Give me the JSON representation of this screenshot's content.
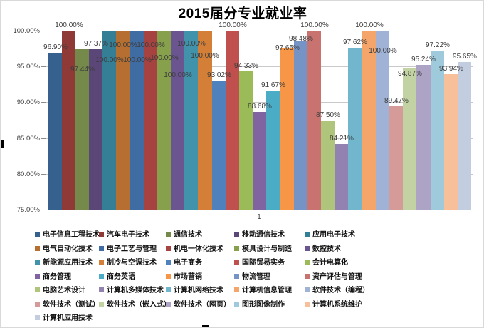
{
  "chart": {
    "title": "2015届分专业就业率",
    "x_category": "1"
  },
  "chart_data": {
    "type": "bar",
    "title": "2015届分专业就业率",
    "categories": [
      "1"
    ],
    "xlabel": "",
    "ylabel": "",
    "ylim": [
      75,
      100
    ],
    "y_tick_values": [
      100,
      95,
      90,
      85,
      80,
      75
    ],
    "y_tick_labels": [
      "100.00%",
      "95.00%",
      "90.00%",
      "85.00%",
      "80.00%",
      "75.00%"
    ],
    "grid": true,
    "legend_position": "bottom",
    "legend_columns": 5,
    "series": [
      {
        "name": "电子信息工程技术",
        "value": 96.9,
        "label": "96.90%",
        "color": "#36618E",
        "label_dy": 0
      },
      {
        "name": "汽车电子技术",
        "value": 100.0,
        "label": "100.00%",
        "color": "#903A38",
        "label_dy": 0
      },
      {
        "name": "通信技术",
        "value": 97.44,
        "label": "97.44%",
        "color": "#74894A",
        "label_dy": 36
      },
      {
        "name": "移动通信技术",
        "value": 97.37,
        "label": "97.37%",
        "color": "#5A4778",
        "label_dy": 0
      },
      {
        "name": "应用电子技术",
        "value": 100.0,
        "label": "100.00%",
        "color": "#347E96",
        "label_dy": 49
      },
      {
        "name": "电气自动化技术",
        "value": 100.0,
        "label": "100.00%",
        "color": "#B66F30",
        "label_dy": 28
      },
      {
        "name": "电子工艺与管理",
        "value": 100.0,
        "label": "100.00%",
        "color": "#406CA4",
        "label_dy": 49
      },
      {
        "name": "机电一体化技术",
        "value": 100.0,
        "label": "100.00%",
        "color": "#A64240",
        "label_dy": 28
      },
      {
        "name": "模具设计与制造",
        "value": 100.0,
        "label": "100.00%",
        "color": "#86A04B",
        "label_dy": 46
      },
      {
        "name": "数控技术",
        "value": 100.0,
        "label": "100.00%",
        "color": "#6A5590",
        "label_dy": 70
      },
      {
        "name": "新能源应用技术",
        "value": 100.0,
        "label": "100.00%",
        "color": "#4192AB",
        "label_dy": 26
      },
      {
        "name": "制冷与空调技术",
        "value": 100.0,
        "label": "100.00%",
        "color": "#D47F38",
        "label_dy": 43
      },
      {
        "name": "电子商务",
        "value": 93.02,
        "label": "93.02%",
        "color": "#4F81BD",
        "label_dy": 0
      },
      {
        "name": "国际贸易实务",
        "value": 100.0,
        "label": "100.00%",
        "color": "#C0504D",
        "label_dy": 0
      },
      {
        "name": "会计电算化",
        "value": 94.33,
        "label": "94.33%",
        "color": "#9BBB59",
        "label_dy": 0
      },
      {
        "name": "商务管理",
        "value": 88.68,
        "label": "88.68%",
        "color": "#8064A2",
        "label_dy": 0
      },
      {
        "name": "商务英语",
        "value": 91.67,
        "label": "91.67%",
        "color": "#4BACC6",
        "label_dy": 0
      },
      {
        "name": "市场营销",
        "value": 97.65,
        "label": "97.65%",
        "color": "#F79646",
        "label_dy": 8
      },
      {
        "name": "物流管理",
        "value": 98.48,
        "label": "98.48%",
        "color": "#7593C5",
        "label_dy": 4
      },
      {
        "name": "资产评估与管理",
        "value": 100.0,
        "label": "100.00%",
        "color": "#C87370",
        "label_dy": 0
      },
      {
        "name": "电脑艺术设计",
        "value": 87.5,
        "label": "87.50%",
        "color": "#AFC57C",
        "label_dy": 0
      },
      {
        "name": "计算机多媒体技术",
        "value": 84.21,
        "label": "84.21%",
        "color": "#9182B2",
        "label_dy": 0
      },
      {
        "name": "计算机网络技术",
        "value": 97.62,
        "label": "97.62%",
        "color": "#71B6CD",
        "label_dy": 0
      },
      {
        "name": "计算机信息管理",
        "value": 100.0,
        "label": "100.00%",
        "color": "#F5A569",
        "label_dy": 0
      },
      {
        "name": "软件技术（编程）",
        "value": 100.0,
        "label": "100.00%",
        "color": "#A0B3D6",
        "label_dy": 36
      },
      {
        "name": "软件技术（测试）",
        "value": 89.47,
        "label": "89.47%",
        "color": "#D49B99",
        "label_dy": 0
      },
      {
        "name": "软件技术（嵌入式）",
        "value": 94.87,
        "label": "94.87%",
        "color": "#C2D2A2",
        "label_dy": 16
      },
      {
        "name": "软件技术（网页）",
        "value": 95.24,
        "label": "95.24%",
        "color": "#ADA4C5",
        "label_dy": 0
      },
      {
        "name": "图形图像制作",
        "value": 97.22,
        "label": "97.22%",
        "color": "#9FCADC",
        "label_dy": 0
      },
      {
        "name": "计算机系统维护",
        "value": 93.94,
        "label": "93.94%",
        "color": "#F8BF9B",
        "label_dy": 0
      },
      {
        "name": "计算机应用技术",
        "value": 95.65,
        "label": "95.65%",
        "color": "#C3CDE0",
        "label_dy": 0
      }
    ]
  }
}
